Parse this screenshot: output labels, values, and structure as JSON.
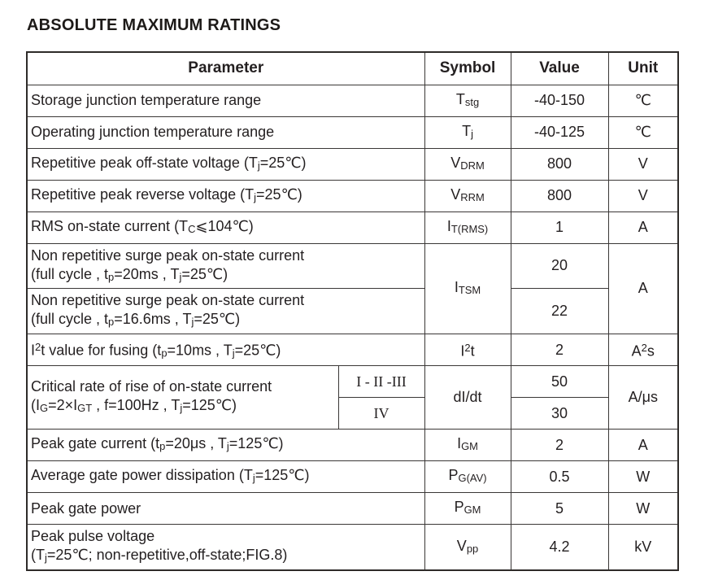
{
  "page": {
    "title": "ABSOLUTE MAXIMUM RATINGS"
  },
  "colors": {
    "background": "#ffffff",
    "text": "#231f20",
    "table_border": "#3a3736"
  },
  "table": {
    "headers": {
      "parameter": "Parameter",
      "symbol": "Symbol",
      "value": "Value",
      "unit": "Unit"
    },
    "rows": [
      {
        "cells": [
          {
            "name": "parameter-cell",
            "align": "left",
            "colspan": 2,
            "lines": [
              "Storage junction temperature range"
            ]
          },
          {
            "name": "symbol-cell",
            "lines": [
              "T~stg~"
            ]
          },
          {
            "name": "value-cell",
            "lines": [
              "-40-150"
            ]
          },
          {
            "name": "unit-cell",
            "lines": [
              "℃"
            ]
          }
        ]
      },
      {
        "cells": [
          {
            "name": "parameter-cell",
            "align": "left",
            "colspan": 2,
            "lines": [
              "Operating junction temperature range"
            ]
          },
          {
            "name": "symbol-cell",
            "lines": [
              "T~j~"
            ]
          },
          {
            "name": "value-cell",
            "lines": [
              "-40-125"
            ]
          },
          {
            "name": "unit-cell",
            "lines": [
              "℃"
            ]
          }
        ]
      },
      {
        "cells": [
          {
            "name": "parameter-cell",
            "align": "left",
            "colspan": 2,
            "lines": [
              "Repetitive peak off-state voltage (T~j~=25℃)"
            ]
          },
          {
            "name": "symbol-cell",
            "lines": [
              "V~DRM~"
            ]
          },
          {
            "name": "value-cell",
            "lines": [
              "800"
            ]
          },
          {
            "name": "unit-cell",
            "lines": [
              "V"
            ]
          }
        ]
      },
      {
        "cells": [
          {
            "name": "parameter-cell",
            "align": "left",
            "colspan": 2,
            "lines": [
              "Repetitive peak reverse voltage (T~j~=25℃)"
            ]
          },
          {
            "name": "symbol-cell",
            "lines": [
              "V~RRM~"
            ]
          },
          {
            "name": "value-cell",
            "lines": [
              "800"
            ]
          },
          {
            "name": "unit-cell",
            "lines": [
              "V"
            ]
          }
        ]
      },
      {
        "cells": [
          {
            "name": "parameter-cell",
            "align": "left",
            "colspan": 2,
            "lines": [
              "RMS on-state current (T~C~⩽104℃)"
            ]
          },
          {
            "name": "symbol-cell",
            "lines": [
              "I~T(RMS)~"
            ]
          },
          {
            "name": "value-cell",
            "lines": [
              "1"
            ]
          },
          {
            "name": "unit-cell",
            "lines": [
              "A"
            ]
          }
        ]
      },
      {
        "cells": [
          {
            "name": "parameter-cell",
            "align": "left",
            "colspan": 2,
            "lines": [
              "Non repetitive surge peak on-state current",
              "(full cycle , t~p~=20ms , T~j~=25℃)"
            ]
          },
          {
            "name": "symbol-cell",
            "rowspan": 2,
            "lines": [
              "I~TSM~"
            ]
          },
          {
            "name": "value-cell",
            "lines": [
              "20"
            ]
          },
          {
            "name": "unit-cell",
            "rowspan": 2,
            "lines": [
              "A"
            ]
          }
        ]
      },
      {
        "cells": [
          {
            "name": "parameter-cell",
            "align": "left",
            "colspan": 2,
            "lines": [
              "Non repetitive surge peak on-state current",
              "(full cycle , t~p~=16.6ms , T~j~=25℃)"
            ]
          },
          {
            "name": "value-cell",
            "lines": [
              "22"
            ]
          }
        ]
      },
      {
        "cells": [
          {
            "name": "parameter-cell",
            "align": "left",
            "colspan": 2,
            "lines": [
              "I^2^t value for fusing (t~p~=10ms , T~j~=25℃)"
            ]
          },
          {
            "name": "symbol-cell",
            "lines": [
              "I^2^t"
            ]
          },
          {
            "name": "value-cell",
            "lines": [
              "2"
            ]
          },
          {
            "name": "unit-cell",
            "lines": [
              "A^2^s"
            ]
          }
        ]
      },
      {
        "cells": [
          {
            "name": "parameter-cell",
            "align": "left",
            "rowspan": 2,
            "lines": [
              "Critical rate of rise of on-state current",
              "(I~G~=2×I~GT~ , f=100Hz , T~j~=125℃)"
            ]
          },
          {
            "name": "class-cell",
            "serif": true,
            "lines": [
              "I - II -III"
            ]
          },
          {
            "name": "symbol-cell",
            "rowspan": 2,
            "lines": [
              "dI/dt"
            ]
          },
          {
            "name": "value-cell",
            "lines": [
              "50"
            ]
          },
          {
            "name": "unit-cell",
            "rowspan": 2,
            "lines": [
              "A/μs"
            ]
          }
        ]
      },
      {
        "cells": [
          {
            "name": "class-cell",
            "serif": true,
            "lines": [
              "IV"
            ]
          },
          {
            "name": "value-cell",
            "lines": [
              "30"
            ]
          }
        ]
      },
      {
        "cells": [
          {
            "name": "parameter-cell",
            "align": "left",
            "colspan": 2,
            "lines": [
              "Peak gate current (t~p~=20μs , T~j~=125℃)"
            ]
          },
          {
            "name": "symbol-cell",
            "lines": [
              "I~GM~"
            ]
          },
          {
            "name": "value-cell",
            "lines": [
              "2"
            ]
          },
          {
            "name": "unit-cell",
            "lines": [
              "A"
            ]
          }
        ]
      },
      {
        "cells": [
          {
            "name": "parameter-cell",
            "align": "left",
            "colspan": 2,
            "lines": [
              "Average gate power dissipation (T~j~=125℃)"
            ]
          },
          {
            "name": "symbol-cell",
            "lines": [
              "P~G(AV)~"
            ]
          },
          {
            "name": "value-cell",
            "lines": [
              "0.5"
            ]
          },
          {
            "name": "unit-cell",
            "lines": [
              "W"
            ]
          }
        ]
      },
      {
        "cells": [
          {
            "name": "parameter-cell",
            "align": "left",
            "colspan": 2,
            "lines": [
              "Peak gate power"
            ]
          },
          {
            "name": "symbol-cell",
            "lines": [
              "P~GM~"
            ]
          },
          {
            "name": "value-cell",
            "lines": [
              "5"
            ]
          },
          {
            "name": "unit-cell",
            "lines": [
              "W"
            ]
          }
        ]
      },
      {
        "cells": [
          {
            "name": "parameter-cell",
            "align": "left",
            "colspan": 2,
            "lines": [
              "Peak pulse voltage",
              "(T~j~=25℃; non-repetitive,off-state;FIG.8)"
            ]
          },
          {
            "name": "symbol-cell",
            "lines": [
              "V~pp~"
            ]
          },
          {
            "name": "value-cell",
            "lines": [
              "4.2"
            ]
          },
          {
            "name": "unit-cell",
            "lines": [
              "kV"
            ]
          }
        ]
      }
    ]
  }
}
